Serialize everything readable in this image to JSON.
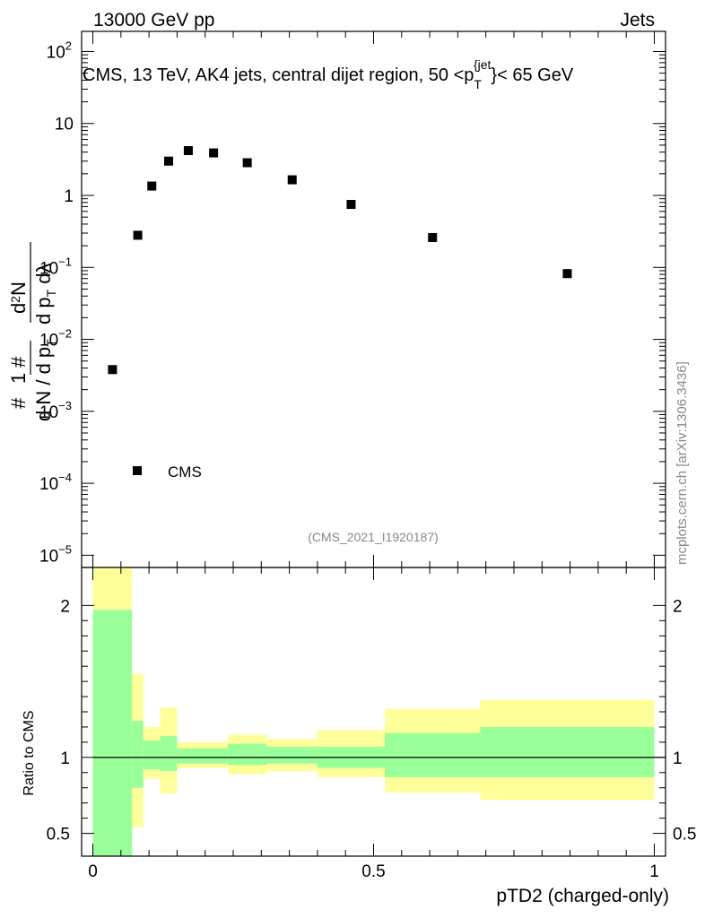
{
  "header": {
    "left": "13000 GeV pp",
    "right": "Jets"
  },
  "side_label": "mcplots.cern.ch [arXiv:1306.3436]",
  "colors": {
    "band_inner": "#99ff99",
    "band_outer": "#ffff99",
    "marker": "#000000",
    "watermark": "#888888"
  },
  "chart_data": [
    {
      "type": "scatter",
      "title": "CMS, 13 TeV, AK4 jets, central dijet region, 50 <p_T^{jet}< 65 GeV",
      "ylabel": "1/(dN/dp_T) · d²N/(dp_T dλ)",
      "yscale": "log",
      "ylim": [
        1e-05,
        200
      ],
      "xlim": [
        -0.02,
        1.02
      ],
      "y_ticks": [
        "10^-5",
        "10^-4",
        "10^-3",
        "10^-2",
        "10^-1",
        "1",
        "10",
        "10^2"
      ],
      "legend": {
        "entries": [
          "CMS"
        ],
        "position": "bottom-left"
      },
      "analysis_label": "(CMS_2021_I1920187)",
      "series": [
        {
          "name": "CMS",
          "x": [
            0.035,
            0.08,
            0.105,
            0.135,
            0.17,
            0.215,
            0.275,
            0.355,
            0.46,
            0.605,
            0.845
          ],
          "y": [
            0.0038,
            0.28,
            1.35,
            3.0,
            4.2,
            3.9,
            2.85,
            1.65,
            0.75,
            0.26,
            0.082
          ]
        }
      ]
    },
    {
      "type": "area",
      "ylabel": "Ratio to CMS",
      "xlabel": "pTD2 (charged-only)",
      "xlim": [
        -0.02,
        1.02
      ],
      "ylim": [
        0.35,
        2.25
      ],
      "x_ticks": [
        "0",
        "0.5",
        "1"
      ],
      "y_ticks": [
        "0.5",
        "1",
        "2"
      ],
      "reference_line": 1,
      "bands": [
        {
          "lo": 0.0,
          "hi": 0.07,
          "inner": [
            0.35,
            1.97
          ],
          "outer": [
            0.35,
            2.25
          ]
        },
        {
          "lo": 0.07,
          "hi": 0.09,
          "inner": [
            0.8,
            1.24
          ],
          "outer": [
            0.54,
            1.55
          ]
        },
        {
          "lo": 0.09,
          "hi": 0.12,
          "inner": [
            0.92,
            1.11
          ],
          "outer": [
            0.86,
            1.2
          ]
        },
        {
          "lo": 0.12,
          "hi": 0.15,
          "inner": [
            0.91,
            1.14
          ],
          "outer": [
            0.76,
            1.33
          ]
        },
        {
          "lo": 0.15,
          "hi": 0.24,
          "inner": [
            0.96,
            1.06
          ],
          "outer": [
            0.93,
            1.1
          ]
        },
        {
          "lo": 0.24,
          "hi": 0.31,
          "inner": [
            0.95,
            1.09
          ],
          "outer": [
            0.89,
            1.15
          ]
        },
        {
          "lo": 0.31,
          "hi": 0.4,
          "inner": [
            0.96,
            1.07
          ],
          "outer": [
            0.91,
            1.12
          ]
        },
        {
          "lo": 0.4,
          "hi": 0.52,
          "inner": [
            0.93,
            1.07
          ],
          "outer": [
            0.87,
            1.18
          ]
        },
        {
          "lo": 0.52,
          "hi": 0.69,
          "inner": [
            0.87,
            1.16
          ],
          "outer": [
            0.77,
            1.32
          ]
        },
        {
          "lo": 0.69,
          "hi": 1.0,
          "inner": [
            0.87,
            1.2
          ],
          "outer": [
            0.72,
            1.38
          ]
        }
      ]
    }
  ]
}
